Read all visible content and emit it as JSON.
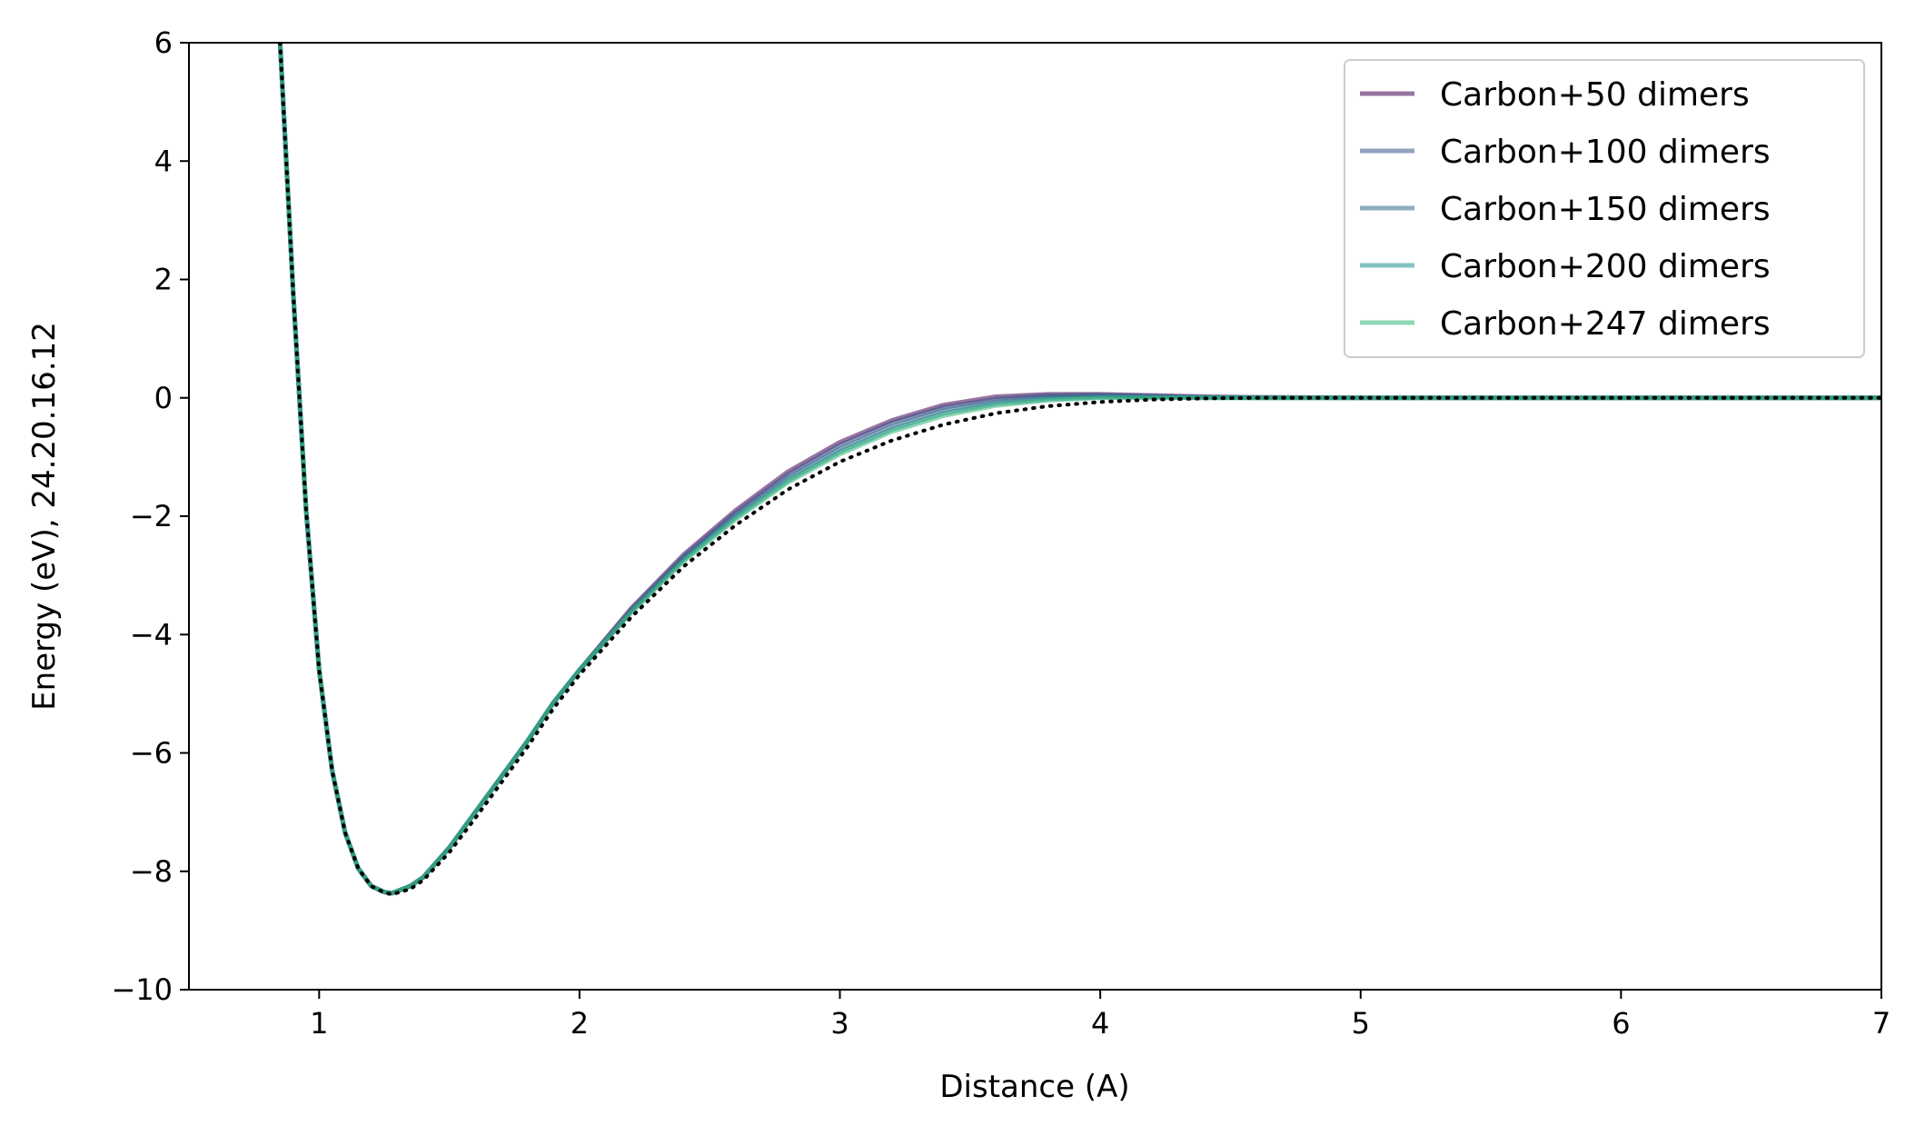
{
  "chart_data": {
    "type": "line",
    "title": "",
    "xlabel": "Distance (A)",
    "ylabel": "Energy (eV), 24.20.16.12",
    "xlim": [
      0.5,
      7
    ],
    "ylim": [
      -10,
      6
    ],
    "xticks": [
      1,
      2,
      3,
      4,
      5,
      6,
      7
    ],
    "xtick_labels": [
      "1",
      "2",
      "3",
      "4",
      "5",
      "6",
      "7"
    ],
    "yticks": [
      -10,
      -8,
      -6,
      -4,
      -2,
      0,
      2,
      4,
      6
    ],
    "ytick_labels": [
      "−10",
      "−8",
      "−6",
      "−4",
      "−2",
      "0",
      "2",
      "4",
      "6"
    ],
    "grid": false,
    "legend_position": "top-right",
    "series": [
      {
        "name": "Carbon+50 dimers",
        "color": "#440154",
        "x": [
          0.85,
          0.9,
          0.95,
          1.0,
          1.05,
          1.1,
          1.15,
          1.2,
          1.25,
          1.28,
          1.35,
          1.4,
          1.5,
          1.6,
          1.7,
          1.8,
          1.9,
          2.0,
          2.2,
          2.4,
          2.6,
          2.8,
          3.0,
          3.2,
          3.4,
          3.6,
          3.8,
          4.0,
          4.2,
          4.4,
          4.6,
          5.0,
          6.0,
          7.0
        ],
        "y": [
          6.0,
          1.8,
          -1.9,
          -4.6,
          -6.3,
          -7.35,
          -7.95,
          -8.25,
          -8.35,
          -8.37,
          -8.25,
          -8.1,
          -7.6,
          -7.0,
          -6.4,
          -5.8,
          -5.15,
          -4.6,
          -3.55,
          -2.65,
          -1.9,
          -1.25,
          -0.75,
          -0.38,
          -0.12,
          0.02,
          0.06,
          0.06,
          0.04,
          0.02,
          0.01,
          0.0,
          0.0,
          0.0
        ]
      },
      {
        "name": "Carbon+100 dimers",
        "color": "#3b528b",
        "x": [
          0.85,
          0.9,
          0.95,
          1.0,
          1.05,
          1.1,
          1.15,
          1.2,
          1.25,
          1.28,
          1.35,
          1.4,
          1.5,
          1.6,
          1.7,
          1.8,
          1.9,
          2.0,
          2.2,
          2.4,
          2.6,
          2.8,
          3.0,
          3.2,
          3.4,
          3.6,
          3.8,
          4.0,
          4.2,
          4.4,
          4.6,
          5.0,
          6.0,
          7.0
        ],
        "y": [
          6.0,
          1.8,
          -1.9,
          -4.6,
          -6.3,
          -7.35,
          -7.95,
          -8.25,
          -8.35,
          -8.37,
          -8.25,
          -8.1,
          -7.6,
          -7.0,
          -6.4,
          -5.8,
          -5.15,
          -4.6,
          -3.57,
          -2.68,
          -1.94,
          -1.3,
          -0.8,
          -0.42,
          -0.16,
          -0.02,
          0.04,
          0.05,
          0.03,
          0.01,
          0.0,
          0.0,
          0.0,
          0.0
        ]
      },
      {
        "name": "Carbon+150 dimers",
        "color": "#31688e",
        "x": [
          0.85,
          0.9,
          0.95,
          1.0,
          1.05,
          1.1,
          1.15,
          1.2,
          1.25,
          1.28,
          1.35,
          1.4,
          1.5,
          1.6,
          1.7,
          1.8,
          1.9,
          2.0,
          2.2,
          2.4,
          2.6,
          2.8,
          3.0,
          3.2,
          3.4,
          3.6,
          3.8,
          4.0,
          4.2,
          4.4,
          4.6,
          5.0,
          6.0,
          7.0
        ],
        "y": [
          6.0,
          1.8,
          -1.9,
          -4.6,
          -6.3,
          -7.35,
          -7.95,
          -8.25,
          -8.35,
          -8.37,
          -8.25,
          -8.1,
          -7.6,
          -7.0,
          -6.4,
          -5.8,
          -5.15,
          -4.6,
          -3.59,
          -2.71,
          -1.98,
          -1.35,
          -0.86,
          -0.48,
          -0.21,
          -0.06,
          0.01,
          0.03,
          0.02,
          0.01,
          0.0,
          0.0,
          0.0,
          0.0
        ]
      },
      {
        "name": "Carbon+200 dimers",
        "color": "#21908d",
        "x": [
          0.85,
          0.9,
          0.95,
          1.0,
          1.05,
          1.1,
          1.15,
          1.2,
          1.25,
          1.28,
          1.35,
          1.4,
          1.5,
          1.6,
          1.7,
          1.8,
          1.9,
          2.0,
          2.2,
          2.4,
          2.6,
          2.8,
          3.0,
          3.2,
          3.4,
          3.6,
          3.8,
          4.0,
          4.2,
          4.4,
          4.6,
          5.0,
          6.0,
          7.0
        ],
        "y": [
          6.0,
          1.8,
          -1.9,
          -4.6,
          -6.3,
          -7.35,
          -7.95,
          -8.25,
          -8.35,
          -8.37,
          -8.25,
          -8.1,
          -7.6,
          -7.0,
          -6.4,
          -5.8,
          -5.15,
          -4.6,
          -3.61,
          -2.74,
          -2.02,
          -1.4,
          -0.91,
          -0.53,
          -0.26,
          -0.1,
          -0.02,
          0.01,
          0.01,
          0.0,
          0.0,
          0.0,
          0.0,
          0.0
        ]
      },
      {
        "name": "Carbon+247 dimers",
        "color": "#35b779",
        "x": [
          0.85,
          0.9,
          0.95,
          1.0,
          1.05,
          1.1,
          1.15,
          1.2,
          1.25,
          1.28,
          1.35,
          1.4,
          1.5,
          1.6,
          1.7,
          1.8,
          1.9,
          2.0,
          2.2,
          2.4,
          2.6,
          2.8,
          3.0,
          3.2,
          3.4,
          3.6,
          3.8,
          4.0,
          4.2,
          4.4,
          4.6,
          5.0,
          6.0,
          7.0
        ],
        "y": [
          6.0,
          1.8,
          -1.9,
          -4.6,
          -6.3,
          -7.35,
          -7.95,
          -8.25,
          -8.35,
          -8.37,
          -8.25,
          -8.1,
          -7.6,
          -7.0,
          -6.4,
          -5.8,
          -5.15,
          -4.6,
          -3.62,
          -2.76,
          -2.05,
          -1.43,
          -0.95,
          -0.57,
          -0.3,
          -0.13,
          -0.04,
          0.0,
          0.0,
          0.0,
          0.0,
          0.0,
          0.0,
          0.0
        ]
      }
    ],
    "reference": {
      "color": "#000000",
      "style": "dotted",
      "x": [
        0.85,
        0.9,
        0.95,
        1.0,
        1.05,
        1.1,
        1.15,
        1.2,
        1.25,
        1.28,
        1.35,
        1.4,
        1.5,
        1.6,
        1.7,
        1.8,
        1.9,
        2.0,
        2.2,
        2.4,
        2.6,
        2.8,
        3.0,
        3.2,
        3.4,
        3.6,
        3.8,
        4.0,
        4.2,
        4.4,
        4.6,
        4.8,
        5.0,
        6.0,
        7.0
      ],
      "y": [
        6.0,
        1.8,
        -1.9,
        -4.6,
        -6.3,
        -7.35,
        -7.95,
        -8.25,
        -8.36,
        -8.39,
        -8.3,
        -8.15,
        -7.68,
        -7.1,
        -6.5,
        -5.9,
        -5.25,
        -4.68,
        -3.7,
        -2.85,
        -2.15,
        -1.55,
        -1.08,
        -0.72,
        -0.45,
        -0.26,
        -0.14,
        -0.07,
        -0.03,
        -0.01,
        0.0,
        0.0,
        0.0,
        0.0,
        0.0
      ]
    }
  }
}
